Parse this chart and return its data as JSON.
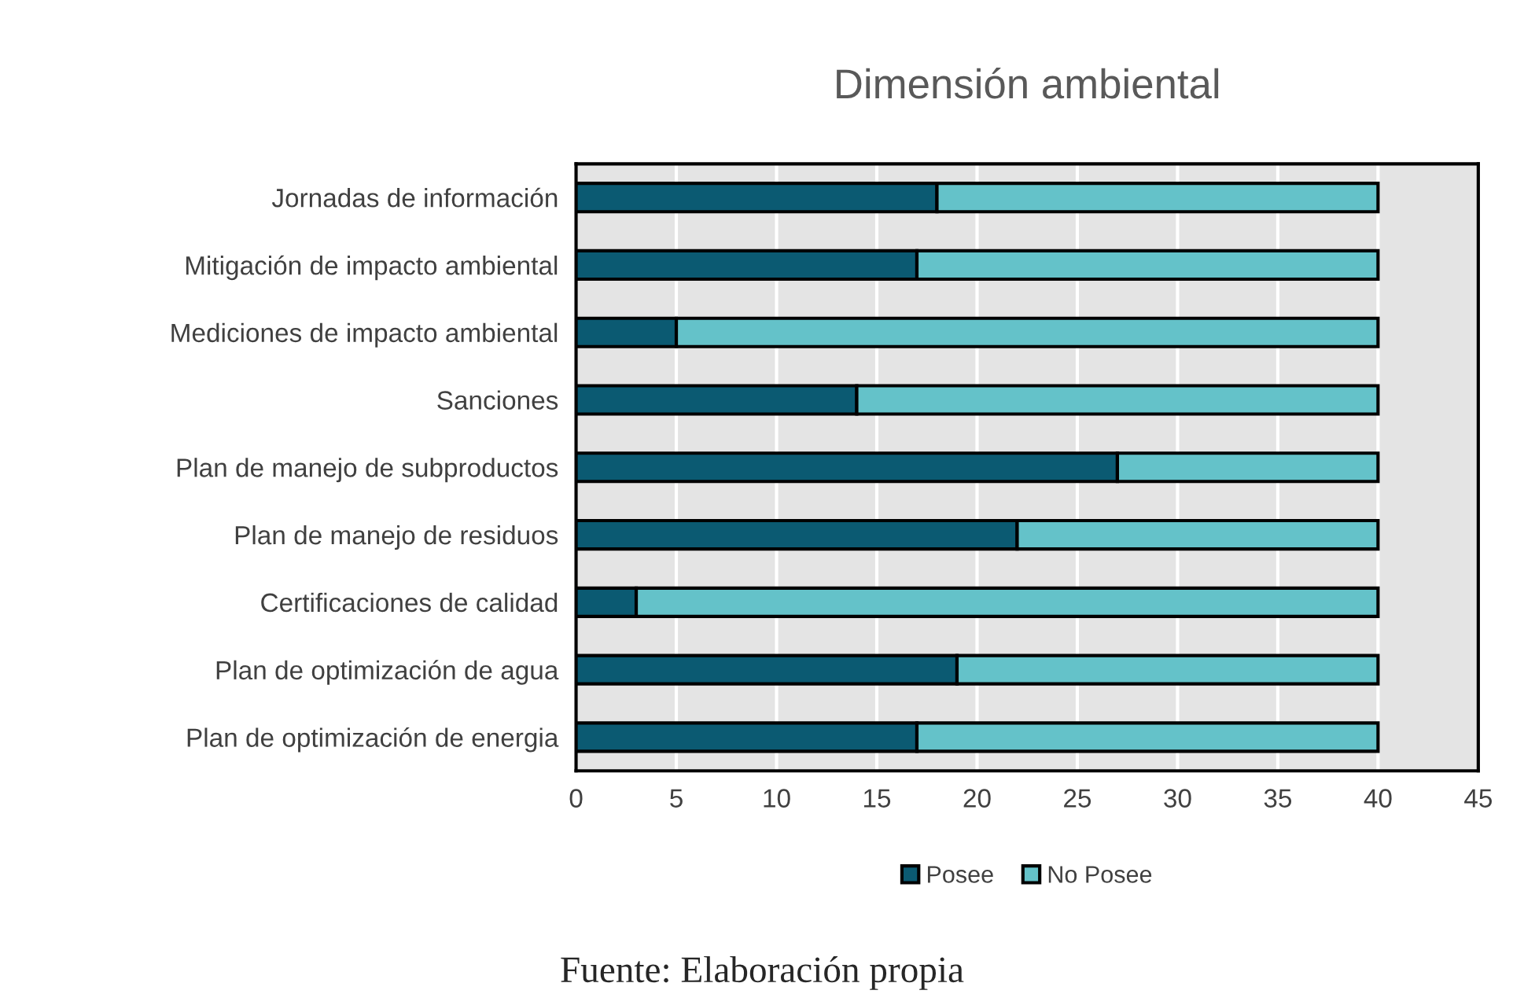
{
  "chart_data": {
    "type": "bar",
    "orientation": "horizontal",
    "stacked": true,
    "title": "Dimensión ambiental",
    "categories": [
      "Jornadas de información",
      "Mitigación de impacto ambiental",
      "Mediciones de impacto ambiental",
      "Sanciones",
      "Plan de manejo de subproductos",
      "Plan de manejo de residuos",
      "Certificaciones de calidad",
      "Plan de optimización de agua",
      "Plan de optimización de energia"
    ],
    "series": [
      {
        "name": "Posee",
        "color": "#0b5a72",
        "values": [
          18,
          17,
          5,
          14,
          27,
          22,
          3,
          19,
          17
        ]
      },
      {
        "name": "No Posee",
        "color": "#64c2c9",
        "values": [
          22,
          23,
          35,
          26,
          13,
          18,
          37,
          21,
          23
        ]
      }
    ],
    "xlim": [
      0,
      45
    ],
    "xticks": [
      0,
      5,
      10,
      15,
      20,
      25,
      30,
      35,
      40,
      45
    ],
    "grid": "x",
    "legend": "bottom",
    "annotations": [
      "Fuente: Elaboración propia"
    ]
  }
}
